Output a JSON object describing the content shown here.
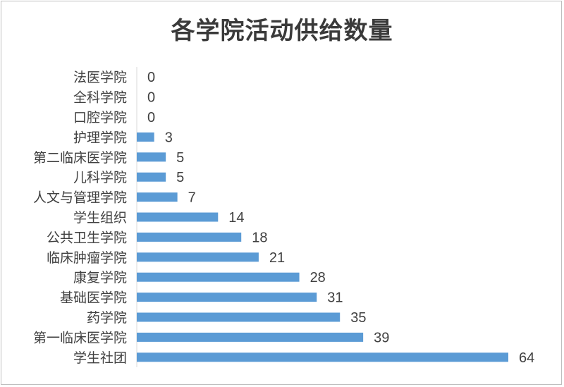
{
  "chart_data": {
    "type": "bar",
    "orientation": "horizontal",
    "title": "各学院活动供给数量",
    "categories": [
      "法医学院",
      "全科学院",
      "口腔学院",
      "护理学院",
      "第二临床医学院",
      "儿科学院",
      "人文与管理学院",
      "学生组织",
      "公共卫生学院",
      "临床肿瘤学院",
      "康复学院",
      "基础医学院",
      "药学院",
      "第一临床医学院",
      "学生社团"
    ],
    "values": [
      0,
      0,
      0,
      3,
      5,
      5,
      7,
      14,
      18,
      21,
      28,
      31,
      35,
      39,
      64
    ],
    "xlim": [
      0,
      64
    ],
    "grid": false,
    "legend": "none",
    "bar_color": "#5b9bd5",
    "axis_color": "#d9d9d9"
  }
}
